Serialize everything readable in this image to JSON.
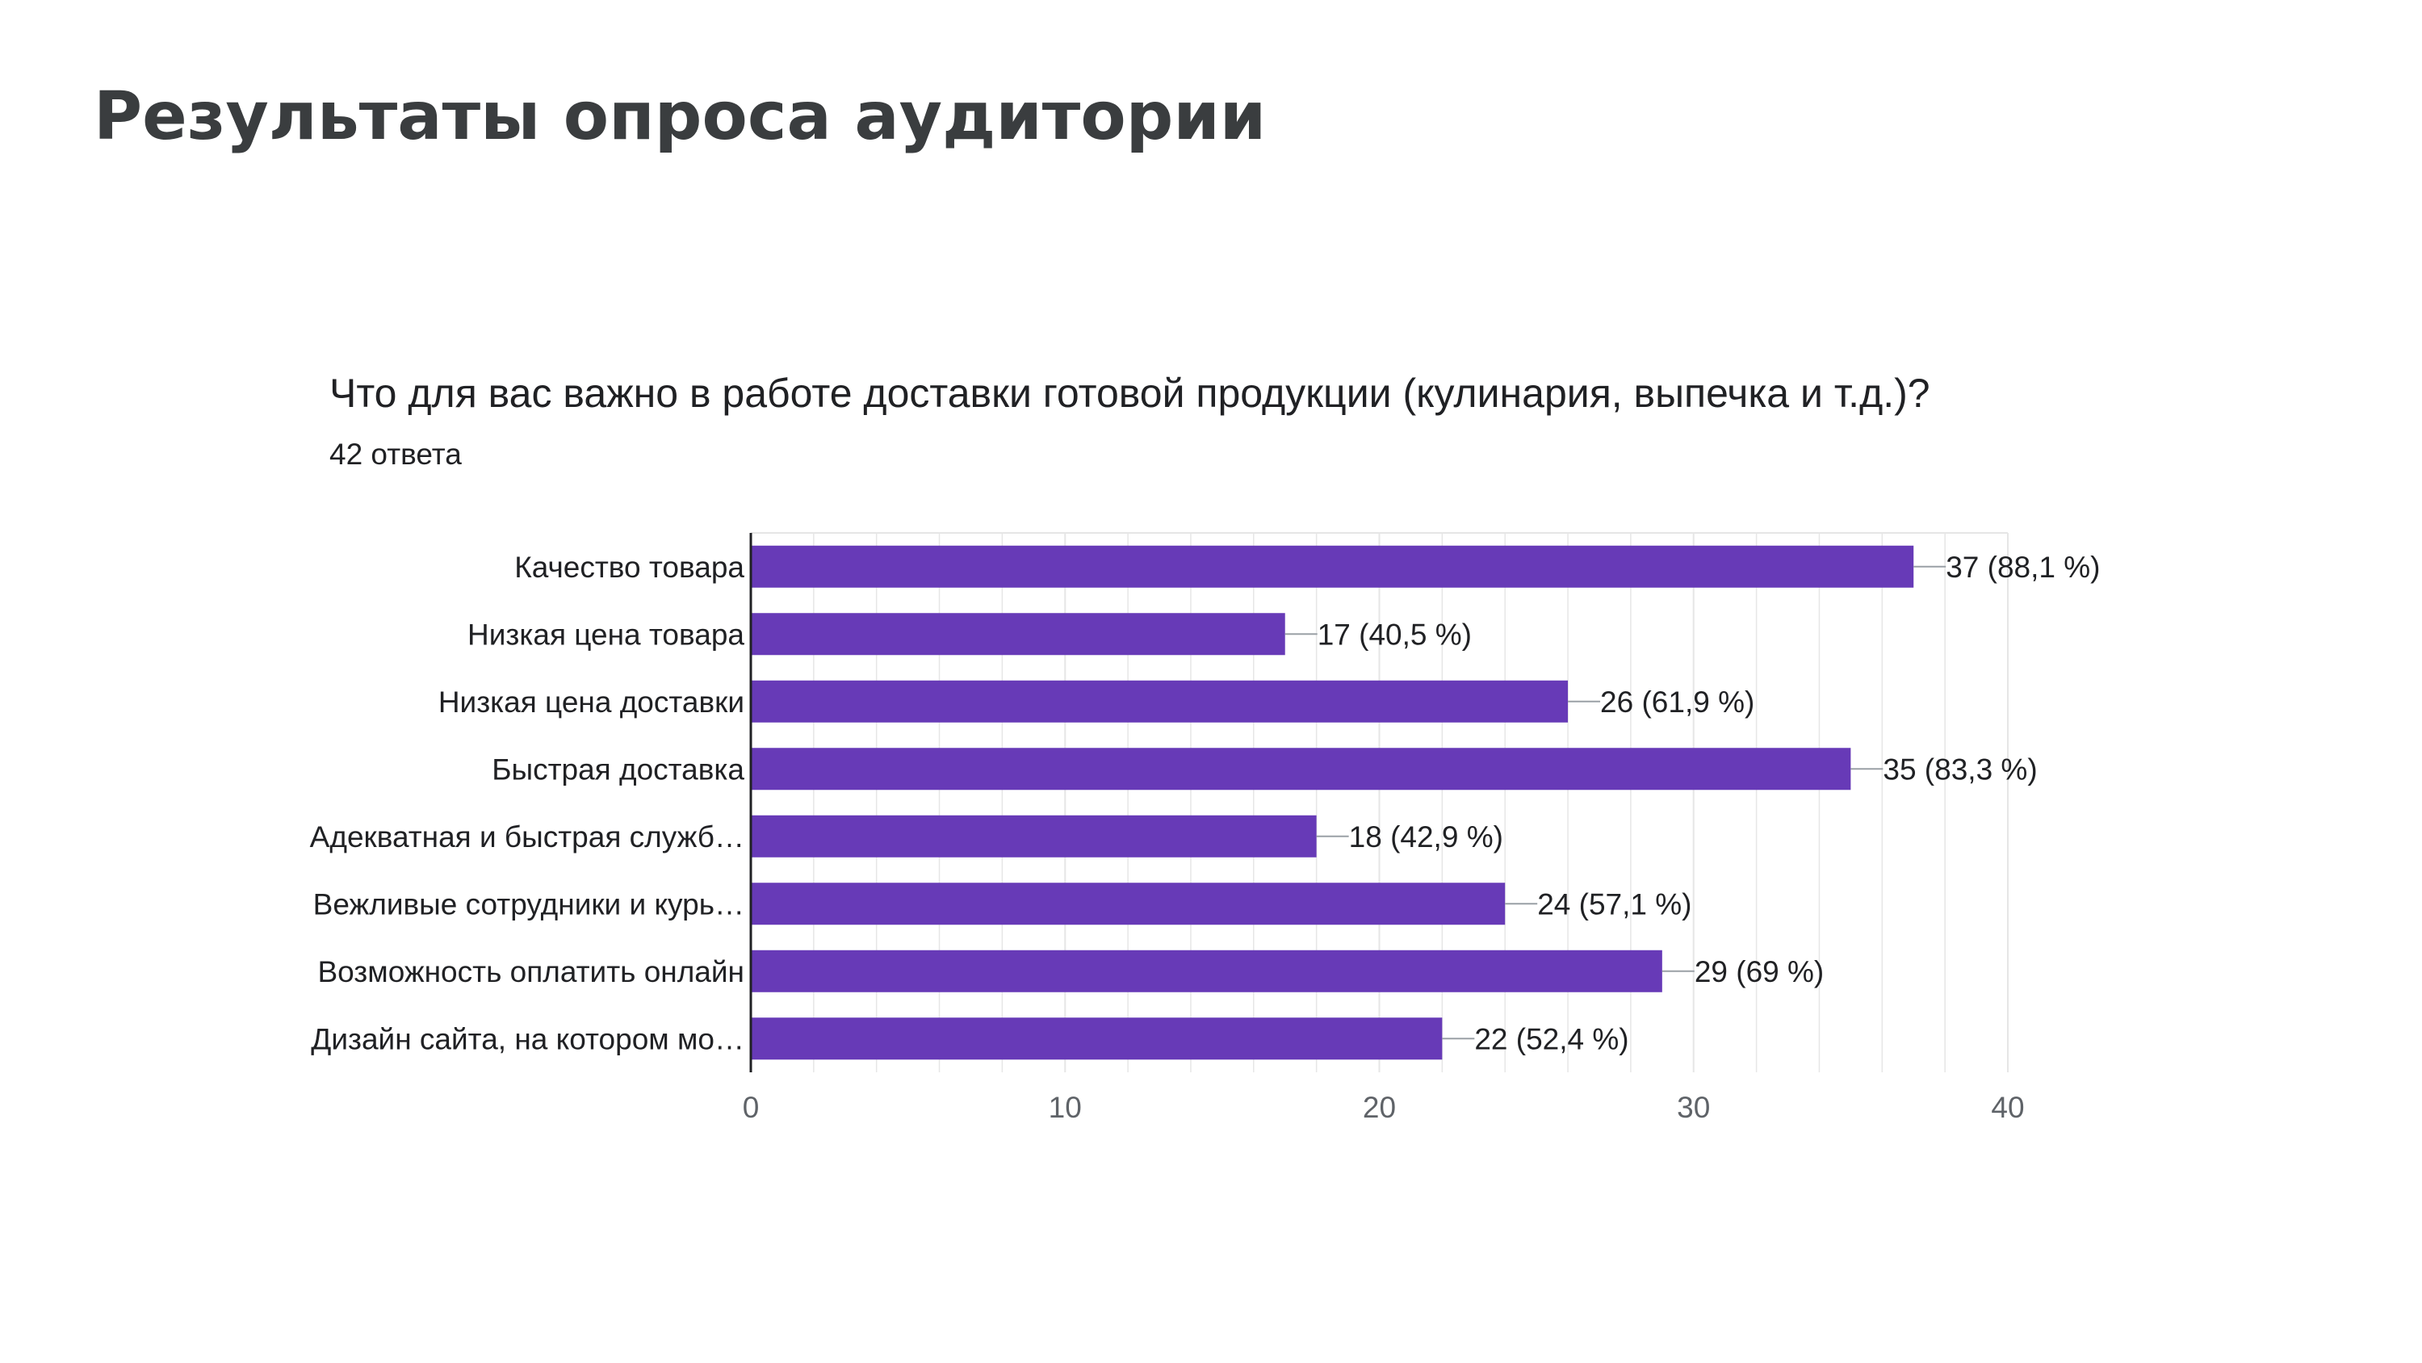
{
  "slide": {
    "title": "Результаты опроса аудитории"
  },
  "chart_data": {
    "type": "bar",
    "orientation": "horizontal",
    "title": "Что для вас важно в работе доставки готовой продукции (кулинария, выпечка и т.д.)?",
    "subtitle": "42 ответа",
    "categories": [
      "Качество товара",
      "Низкая цена товара",
      "Низкая цена доставки",
      "Быстрая доставка",
      "Адекватная и быстрая служб…",
      "Вежливые сотрудники и курь…",
      "Возможность оплатить онлайн",
      "Дизайн сайта, на котором мо…"
    ],
    "values": [
      37,
      17,
      26,
      35,
      18,
      24,
      29,
      22
    ],
    "data_labels": [
      "37 (88,1 %)",
      "17 (40,5 %)",
      "26 (61,9 %)",
      "35 (83,3 %)",
      "18 (42,9 %)",
      "24 (57,1 %)",
      "29 (69 %)",
      "22 (52,4 %)"
    ],
    "xlim": [
      0,
      40
    ],
    "x_ticks": [
      "0",
      "10",
      "20",
      "30",
      "40"
    ],
    "grid": true,
    "bar_color": "#673ab7",
    "grid_color": "#e6e6e6",
    "axis_color": "#202124",
    "label_color": "#202124",
    "tick_color": "#5f6368"
  }
}
